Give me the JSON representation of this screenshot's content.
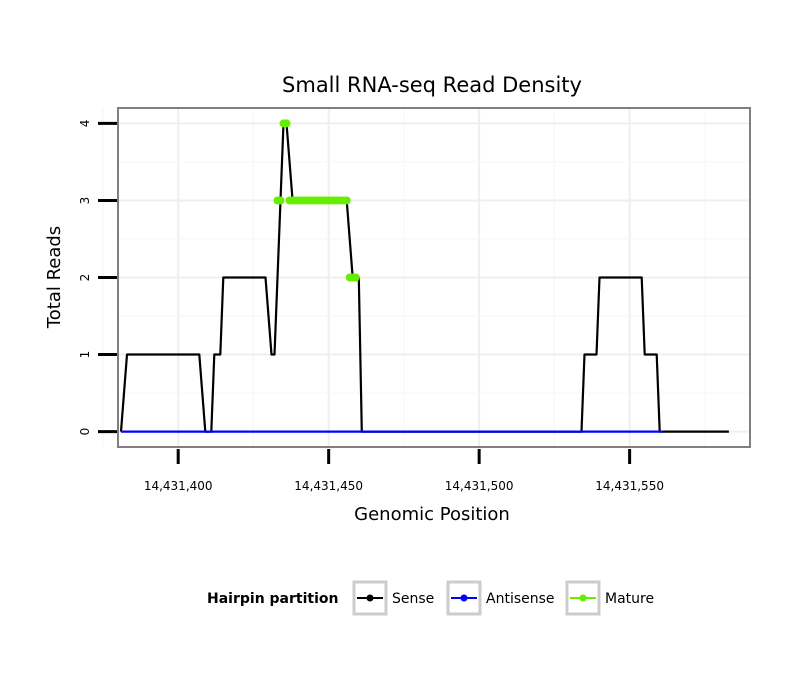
{
  "chart_data": {
    "type": "line",
    "title": "Small RNA-seq Read Density",
    "xlabel": "Genomic Position",
    "ylabel": "Total Reads",
    "xlim": [
      14431380,
      14431590
    ],
    "ylim": [
      -0.2,
      4.2
    ],
    "x_ticks": [
      14431400,
      14431450,
      14431500,
      14431550
    ],
    "x_tick_labels": [
      "14,431,400",
      "14,431,450",
      "14,431,500",
      "14,431,550"
    ],
    "y_ticks": [
      0,
      1,
      2,
      3,
      4
    ],
    "y_tick_labels": [
      "0",
      "1",
      "2",
      "3",
      "4"
    ],
    "grid": true,
    "legend": {
      "title": "Hairpin partition",
      "position": "bottom",
      "entries": [
        "Sense",
        "Antisense",
        "Mature"
      ]
    },
    "series": [
      {
        "name": "Sense",
        "color": "#000000",
        "points": [
          [
            14431381,
            0
          ],
          [
            14431383,
            1
          ],
          [
            14431407,
            1
          ],
          [
            14431409,
            0
          ],
          [
            14431411,
            0
          ],
          [
            14431412,
            1
          ],
          [
            14431414,
            1
          ],
          [
            14431415,
            2
          ],
          [
            14431429,
            2
          ],
          [
            14431431,
            1
          ],
          [
            14431432,
            1
          ],
          [
            14431434,
            3
          ],
          [
            14431435,
            4
          ],
          [
            14431436,
            4
          ],
          [
            14431438,
            3
          ],
          [
            14431456,
            3
          ],
          [
            14431458,
            2
          ],
          [
            14431460,
            2
          ],
          [
            14431461,
            0
          ],
          [
            14431534,
            0
          ],
          [
            14431535,
            1
          ],
          [
            14431539,
            1
          ],
          [
            14431540,
            2
          ],
          [
            14431554,
            2
          ],
          [
            14431555,
            1
          ],
          [
            14431559,
            1
          ],
          [
            14431560,
            0
          ],
          [
            14431583,
            0
          ]
        ]
      },
      {
        "name": "Antisense",
        "color": "#0000ff",
        "points": [
          [
            14431381,
            0
          ],
          [
            14431561,
            0
          ]
        ]
      },
      {
        "name": "Mature",
        "color": "#66ee00",
        "points": [
          [
            14431433,
            3
          ],
          [
            14431434,
            3
          ],
          [
            14431435,
            4
          ],
          [
            14431436,
            4
          ],
          [
            14431437,
            3
          ],
          [
            14431438,
            3
          ],
          [
            14431439,
            3
          ],
          [
            14431440,
            3
          ],
          [
            14431441,
            3
          ],
          [
            14431442,
            3
          ],
          [
            14431443,
            3
          ],
          [
            14431444,
            3
          ],
          [
            14431445,
            3
          ],
          [
            14431446,
            3
          ],
          [
            14431447,
            3
          ],
          [
            14431448,
            3
          ],
          [
            14431449,
            3
          ],
          [
            14431450,
            3
          ],
          [
            14431451,
            3
          ],
          [
            14431452,
            3
          ],
          [
            14431453,
            3
          ],
          [
            14431454,
            3
          ],
          [
            14431455,
            3
          ],
          [
            14431456,
            3
          ],
          [
            14431457,
            2
          ],
          [
            14431458,
            2
          ],
          [
            14431459,
            2
          ]
        ]
      }
    ]
  }
}
